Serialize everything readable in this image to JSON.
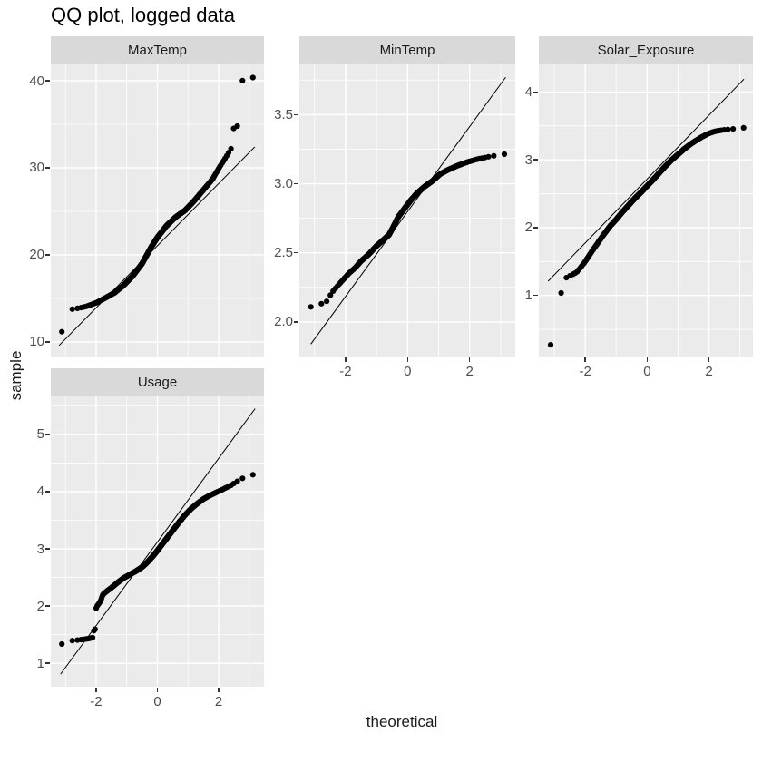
{
  "title": "QQ plot, logged data",
  "colors": {
    "background": "#ffffff",
    "panel_bg": "#ebebeb",
    "strip_bg": "#d9d9d9",
    "grid": "#ffffff",
    "point": "#000000",
    "ref_line": "#000000",
    "tick_text": "#4d4d4d",
    "strip_text": "#1a1a1a",
    "title_text": "#000000"
  },
  "chart_data": {
    "type": "scatter",
    "subtype": "faceted-qq-plot",
    "title": "QQ plot, logged data",
    "xlabel": "theoretical",
    "ylabel": "sample",
    "grid": "on",
    "legend": "none",
    "n_points_per_facet": 550,
    "point_radius_px": 3.1,
    "facets": [
      {
        "label": "MaxTemp",
        "row": 0,
        "col": 0,
        "xlim": [
          -3.48,
          3.48
        ],
        "ylim": [
          8.33,
          41.98
        ],
        "x_major": [
          -2,
          0,
          2
        ],
        "x_minor": [
          -3,
          -1,
          1,
          3
        ],
        "x_tick_labels": [
          "-2",
          "0",
          "2"
        ],
        "show_x_tick_labels": false,
        "y_major": [
          10,
          20,
          30,
          40
        ],
        "y_minor": [
          15,
          25,
          35
        ],
        "y_tick_labels": [
          "10",
          "20",
          "30",
          "40"
        ],
        "ref_line": {
          "x1": -3.21,
          "y1": 9.6,
          "x2": 3.18,
          "y2": 32.4
        },
        "qq_curve": [
          [
            -3.3,
            11.05
          ],
          [
            -3.0,
            11.25
          ],
          [
            -2.95,
            12.05
          ],
          [
            -2.85,
            12.2
          ],
          [
            -2.81,
            13.75
          ],
          [
            -2.55,
            13.9
          ],
          [
            -2.3,
            14.1
          ],
          [
            -2.0,
            14.5
          ],
          [
            -1.7,
            15.05
          ],
          [
            -1.4,
            15.65
          ],
          [
            -1.1,
            16.5
          ],
          [
            -0.8,
            17.6
          ],
          [
            -0.5,
            19.0
          ],
          [
            -0.2,
            20.9
          ],
          [
            0.0,
            22.0
          ],
          [
            0.3,
            23.35
          ],
          [
            0.6,
            24.35
          ],
          [
            0.9,
            25.1
          ],
          [
            1.2,
            26.2
          ],
          [
            1.5,
            27.45
          ],
          [
            1.8,
            28.7
          ],
          [
            2.05,
            30.2
          ],
          [
            2.25,
            31.3
          ],
          [
            2.42,
            32.3
          ],
          [
            2.44,
            34.4
          ],
          [
            2.68,
            34.95
          ],
          [
            2.72,
            39.95
          ],
          [
            2.95,
            40.2
          ],
          [
            3.3,
            40.55
          ]
        ]
      },
      {
        "label": "MinTemp",
        "row": 0,
        "col": 1,
        "xlim": [
          -3.49,
          3.47
        ],
        "ylim": [
          1.75,
          3.87
        ],
        "x_major": [
          -2,
          0,
          2
        ],
        "x_minor": [
          -3,
          -1,
          1,
          3
        ],
        "x_tick_labels": [
          "-2",
          "0",
          "2"
        ],
        "show_x_tick_labels": true,
        "y_major": [
          2.0,
          2.5,
          3.0,
          3.5
        ],
        "y_minor": [
          2.25,
          2.75,
          3.25,
          3.75
        ],
        "y_tick_labels": [
          "2.0",
          "2.5",
          "3.0",
          "3.5"
        ],
        "ref_line": {
          "x1": -3.12,
          "y1": 1.84,
          "x2": 3.16,
          "y2": 3.77
        },
        "qq_curve": [
          [
            -3.3,
            2.1
          ],
          [
            -3.0,
            2.115
          ],
          [
            -2.8,
            2.13
          ],
          [
            -2.6,
            2.15
          ],
          [
            -2.45,
            2.21
          ],
          [
            -2.3,
            2.25
          ],
          [
            -2.1,
            2.3
          ],
          [
            -1.9,
            2.35
          ],
          [
            -1.7,
            2.39
          ],
          [
            -1.5,
            2.44
          ],
          [
            -1.25,
            2.49
          ],
          [
            -1.0,
            2.55
          ],
          [
            -0.8,
            2.59
          ],
          [
            -0.6,
            2.63
          ],
          [
            -0.48,
            2.68
          ],
          [
            -0.3,
            2.76
          ],
          [
            -0.1,
            2.82
          ],
          [
            0.1,
            2.88
          ],
          [
            0.3,
            2.93
          ],
          [
            0.55,
            2.98
          ],
          [
            0.8,
            3.02
          ],
          [
            1.05,
            3.07
          ],
          [
            1.3,
            3.1
          ],
          [
            1.6,
            3.13
          ],
          [
            1.9,
            3.155
          ],
          [
            2.2,
            3.175
          ],
          [
            2.6,
            3.195
          ],
          [
            3.0,
            3.21
          ],
          [
            3.3,
            3.22
          ]
        ]
      },
      {
        "label": "Solar_Exposure",
        "row": 0,
        "col": 2,
        "xlim": [
          -3.5,
          3.42
        ],
        "ylim": [
          0.1,
          4.42
        ],
        "x_major": [
          -2,
          0,
          2
        ],
        "x_minor": [
          -3,
          -1,
          1,
          3
        ],
        "x_tick_labels": [
          "-2",
          "0",
          "2"
        ],
        "show_x_tick_labels": true,
        "y_major": [
          1,
          2,
          3,
          4
        ],
        "y_minor": [
          0.5,
          1.5,
          2.5,
          3.5
        ],
        "y_tick_labels": [
          "1",
          "2",
          "3",
          "4"
        ],
        "ref_line": {
          "x1": -3.2,
          "y1": 1.21,
          "x2": 3.13,
          "y2": 4.19
        },
        "qq_curve": [
          [
            -3.3,
            0.26
          ],
          [
            -3.02,
            0.28
          ],
          [
            -2.98,
            0.7
          ],
          [
            -2.84,
            0.72
          ],
          [
            -2.8,
            1.03
          ],
          [
            -2.7,
            1.06
          ],
          [
            -2.64,
            1.11
          ],
          [
            -2.62,
            1.26
          ],
          [
            -2.45,
            1.3
          ],
          [
            -2.28,
            1.34
          ],
          [
            -2.12,
            1.43
          ],
          [
            -2.0,
            1.5
          ],
          [
            -1.8,
            1.64
          ],
          [
            -1.6,
            1.77
          ],
          [
            -1.4,
            1.9
          ],
          [
            -1.2,
            2.02
          ],
          [
            -1.0,
            2.12
          ],
          [
            -0.8,
            2.23
          ],
          [
            -0.6,
            2.33
          ],
          [
            -0.4,
            2.43
          ],
          [
            -0.2,
            2.52
          ],
          [
            0.0,
            2.615
          ],
          [
            0.2,
            2.71
          ],
          [
            0.4,
            2.81
          ],
          [
            0.6,
            2.91
          ],
          [
            0.8,
            3.0
          ],
          [
            1.0,
            3.08
          ],
          [
            1.2,
            3.16
          ],
          [
            1.4,
            3.23
          ],
          [
            1.6,
            3.29
          ],
          [
            1.8,
            3.345
          ],
          [
            2.0,
            3.39
          ],
          [
            2.2,
            3.42
          ],
          [
            2.45,
            3.44
          ],
          [
            2.75,
            3.455
          ],
          [
            3.05,
            3.465
          ],
          [
            3.3,
            3.49
          ]
        ]
      },
      {
        "label": "Usage",
        "row": 1,
        "col": 0,
        "xlim": [
          -3.48,
          3.48
        ],
        "ylim": [
          0.59,
          5.68
        ],
        "x_major": [
          -2,
          0,
          2
        ],
        "x_minor": [
          -3,
          -1,
          1,
          3
        ],
        "x_tick_labels": [
          "-2",
          "0",
          "2"
        ],
        "show_x_tick_labels": true,
        "y_major": [
          1,
          2,
          3,
          4,
          5
        ],
        "y_minor": [
          1.5,
          2.5,
          3.5,
          4.5,
          5.5
        ],
        "y_tick_labels": [
          "1",
          "2",
          "3",
          "4",
          "5"
        ],
        "ref_line": {
          "x1": -3.16,
          "y1": 0.81,
          "x2": 3.19,
          "y2": 5.45
        },
        "qq_curve": [
          [
            -3.3,
            1.33
          ],
          [
            -3.0,
            1.34
          ],
          [
            -2.96,
            1.385
          ],
          [
            -2.7,
            1.4
          ],
          [
            -2.45,
            1.415
          ],
          [
            -2.25,
            1.43
          ],
          [
            -2.1,
            1.45
          ],
          [
            -2.085,
            1.56
          ],
          [
            -2.015,
            1.61
          ],
          [
            -2.01,
            1.95
          ],
          [
            -1.97,
            2.0
          ],
          [
            -1.86,
            2.08
          ],
          [
            -1.78,
            2.2
          ],
          [
            -1.65,
            2.26
          ],
          [
            -1.5,
            2.32
          ],
          [
            -1.3,
            2.41
          ],
          [
            -1.1,
            2.49
          ],
          [
            -0.9,
            2.55
          ],
          [
            -0.7,
            2.61
          ],
          [
            -0.5,
            2.68
          ],
          [
            -0.3,
            2.78
          ],
          [
            -0.1,
            2.9
          ],
          [
            0.1,
            3.04
          ],
          [
            0.3,
            3.18
          ],
          [
            0.5,
            3.32
          ],
          [
            0.7,
            3.46
          ],
          [
            0.9,
            3.59
          ],
          [
            1.1,
            3.7
          ],
          [
            1.3,
            3.79
          ],
          [
            1.5,
            3.87
          ],
          [
            1.7,
            3.93
          ],
          [
            1.9,
            3.98
          ],
          [
            2.1,
            4.03
          ],
          [
            2.4,
            4.11
          ],
          [
            2.7,
            4.21
          ],
          [
            2.9,
            4.265
          ],
          [
            3.1,
            4.295
          ],
          [
            3.3,
            4.31
          ]
        ]
      }
    ]
  }
}
